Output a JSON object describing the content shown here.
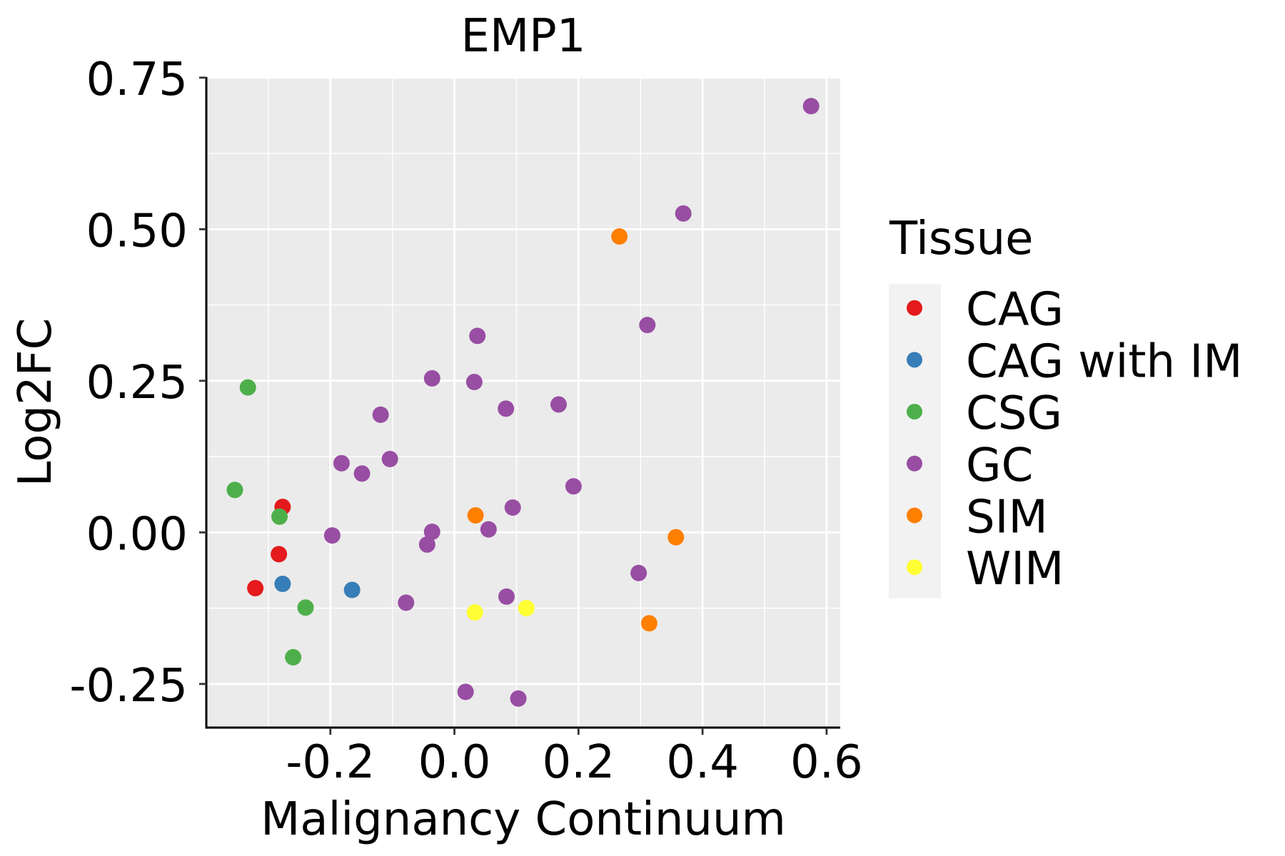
{
  "chart_data": {
    "type": "scatter",
    "title": "EMP1",
    "xlabel": "Malignancy Continuum",
    "ylabel": "Log2FC",
    "xlim": [
      -0.4,
      0.622
    ],
    "ylim": [
      -0.322,
      0.751
    ],
    "x_ticks": [
      -0.2,
      0.0,
      0.2,
      0.4,
      0.6
    ],
    "x_tick_labels": [
      "-0.2",
      "0.0",
      "0.2",
      "0.4",
      "0.6"
    ],
    "x_minor_gridlines": [
      -0.3,
      -0.1,
      0.1,
      0.3,
      0.5
    ],
    "y_ticks": [
      -0.25,
      0.0,
      0.25,
      0.5,
      0.75
    ],
    "y_tick_labels": [
      "-0.25",
      "0.00",
      "0.25",
      "0.50",
      "0.75"
    ],
    "y_minor_gridlines": [
      -0.125,
      0.125,
      0.375,
      0.625
    ],
    "grid": true,
    "panel_background": "#EBEBEB",
    "legend": {
      "title": "Tissue",
      "placement": "right"
    },
    "series": [
      {
        "name": "CAG",
        "color": "#E41A1C",
        "points": [
          [
            -0.277,
            0.042
          ],
          [
            -0.283,
            -0.036
          ],
          [
            -0.321,
            -0.092
          ]
        ]
      },
      {
        "name": "CAG with IM",
        "color": "#377EB8",
        "points": [
          [
            -0.277,
            -0.085
          ],
          [
            -0.165,
            -0.095
          ]
        ]
      },
      {
        "name": "CSG",
        "color": "#4DAF4A",
        "points": [
          [
            -0.333,
            0.239
          ],
          [
            -0.354,
            0.07
          ],
          [
            -0.282,
            0.026
          ],
          [
            -0.24,
            -0.124
          ],
          [
            -0.26,
            -0.206
          ]
        ]
      },
      {
        "name": "GC",
        "color": "#984EA3",
        "points": [
          [
            0.575,
            0.703
          ],
          [
            0.369,
            0.526
          ],
          [
            0.311,
            0.342
          ],
          [
            0.037,
            0.324
          ],
          [
            -0.036,
            0.254
          ],
          [
            0.032,
            0.248
          ],
          [
            0.083,
            0.204
          ],
          [
            0.168,
            0.211
          ],
          [
            -0.119,
            0.194
          ],
          [
            -0.182,
            0.114
          ],
          [
            -0.149,
            0.097
          ],
          [
            -0.104,
            0.121
          ],
          [
            0.192,
            0.076
          ],
          [
            0.094,
            0.041
          ],
          [
            0.055,
            0.005
          ],
          [
            -0.036,
            0.001
          ],
          [
            -0.044,
            -0.02
          ],
          [
            -0.197,
            -0.005
          ],
          [
            -0.078,
            -0.116
          ],
          [
            0.084,
            -0.106
          ],
          [
            0.297,
            -0.067
          ],
          [
            0.018,
            -0.263
          ],
          [
            0.103,
            -0.274
          ]
        ]
      },
      {
        "name": "SIM",
        "color": "#FF7F00",
        "points": [
          [
            0.266,
            0.488
          ],
          [
            0.034,
            0.028
          ],
          [
            0.357,
            -0.008
          ],
          [
            0.314,
            -0.15
          ]
        ]
      },
      {
        "name": "WIM",
        "color": "#FFFF33",
        "points": [
          [
            0.033,
            -0.132
          ],
          [
            0.116,
            -0.125
          ]
        ]
      }
    ]
  }
}
